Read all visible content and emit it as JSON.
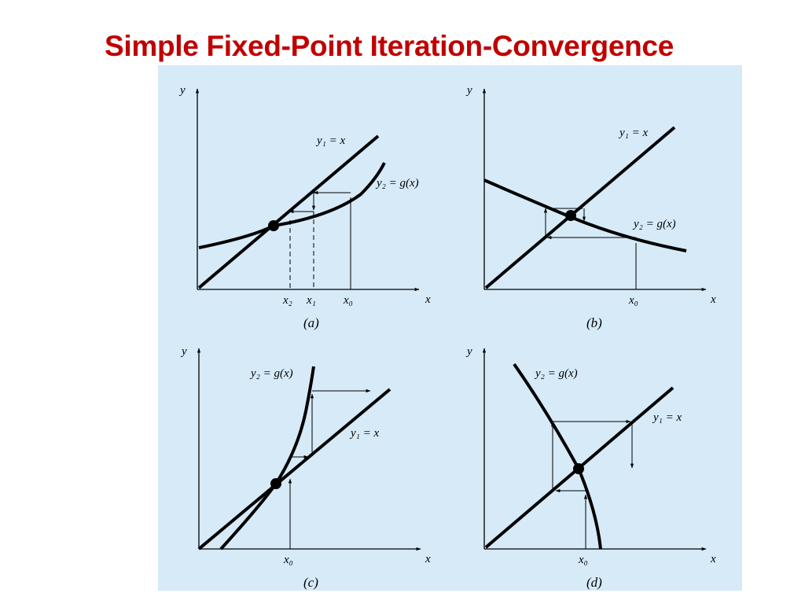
{
  "slide": {
    "title": "Simple Fixed-Point Iteration-Convergence",
    "title_color": "#c00000"
  },
  "figure": {
    "background": "#d6eaf8",
    "ink": "#000000",
    "panels": [
      {
        "id": "a",
        "caption": "(a)",
        "axis_x": "x",
        "axis_y": "y",
        "label_line": "y₁ = x",
        "label_curve": "y₂ = g(x)",
        "ticks": [
          "x₂",
          "x₁",
          "x₀"
        ]
      },
      {
        "id": "b",
        "caption": "(b)",
        "axis_x": "x",
        "axis_y": "y",
        "label_line": "y₁ = x",
        "label_curve": "y₂ = g(x)",
        "ticks": [
          "x₀"
        ]
      },
      {
        "id": "c",
        "caption": "(c)",
        "axis_x": "x",
        "axis_y": "y",
        "label_line": "y₁ = x",
        "label_curve": "y₂ = g(x)",
        "ticks": [
          "x₀"
        ]
      },
      {
        "id": "d",
        "caption": "(d)",
        "axis_x": "x",
        "axis_y": "y",
        "label_line": "y₁ = x",
        "label_curve": "y₂ = g(x)",
        "ticks": [
          "x₀"
        ]
      }
    ]
  }
}
